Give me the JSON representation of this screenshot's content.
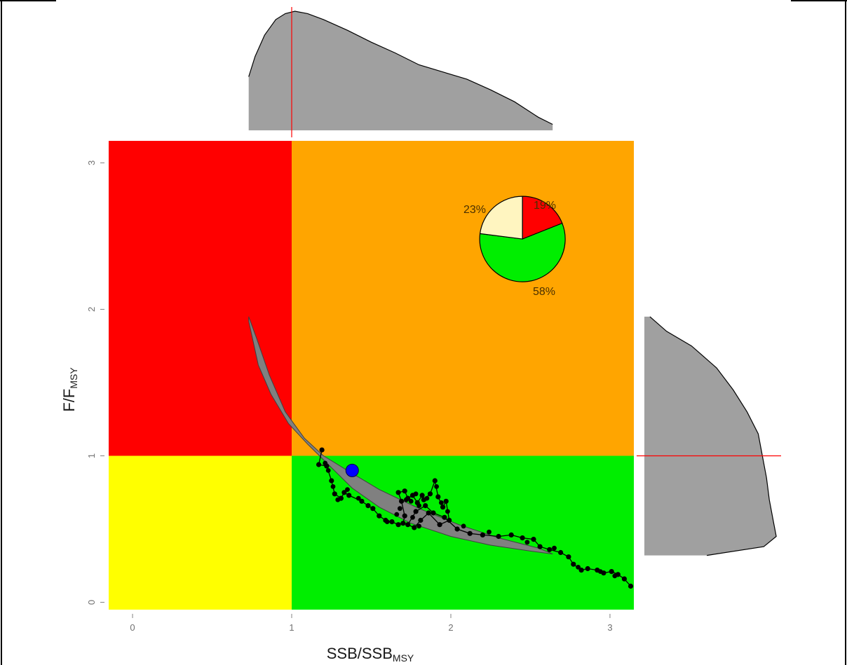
{
  "chart_data": {
    "type": "scatter",
    "title": "",
    "xlabel": {
      "main": "SSB/SSB",
      "sub": "MSY"
    },
    "ylabel": {
      "main": "F/F",
      "sub": "MSY"
    },
    "xlim": [
      -0.15,
      3.15
    ],
    "ylim": [
      -0.05,
      3.15
    ],
    "xticks": [
      0,
      1,
      2,
      3
    ],
    "yticks": [
      0,
      1,
      2,
      3
    ],
    "xtick_labels": [
      "0",
      "1",
      "2",
      "3"
    ],
    "ytick_labels": [
      "0",
      "1",
      "2",
      "3"
    ],
    "reference_lines": {
      "ssb_ratio": 1,
      "f_ratio": 1
    },
    "quadrants": {
      "overfished_overfishing": "#ff0000",
      "healthy_overfishing": "#ffa500",
      "overfished_no_overfishing": "#ffff00",
      "healthy_no_overfishing": "#00ee00"
    },
    "trajectory": {
      "color": "#000000",
      "points": [
        [
          1.19,
          1.04
        ],
        [
          1.17,
          0.94
        ],
        [
          1.22,
          0.93
        ],
        [
          1.25,
          0.83
        ],
        [
          1.27,
          0.74
        ],
        [
          1.31,
          0.71
        ],
        [
          1.33,
          0.75
        ],
        [
          1.36,
          0.73
        ],
        [
          1.44,
          0.69
        ],
        [
          1.48,
          0.66
        ],
        [
          1.51,
          0.64
        ],
        [
          1.55,
          0.59
        ],
        [
          1.59,
          0.56
        ],
        [
          1.63,
          0.55
        ],
        [
          1.67,
          0.53
        ],
        [
          1.7,
          0.54
        ],
        [
          1.71,
          0.59
        ],
        [
          1.69,
          0.69
        ],
        [
          1.67,
          0.75
        ],
        [
          1.71,
          0.76
        ],
        [
          1.73,
          0.71
        ],
        [
          1.76,
          0.73
        ],
        [
          1.79,
          0.68
        ],
        [
          1.82,
          0.73
        ],
        [
          1.83,
          0.7
        ],
        [
          1.87,
          0.74
        ],
        [
          1.9,
          0.83
        ],
        [
          1.92,
          0.72
        ],
        [
          1.95,
          0.65
        ],
        [
          1.97,
          0.69
        ],
        [
          1.99,
          0.56
        ],
        [
          1.93,
          0.53
        ],
        [
          1.86,
          0.61
        ],
        [
          1.81,
          0.56
        ],
        [
          1.77,
          0.51
        ],
        [
          1.73,
          0.53
        ],
        [
          1.78,
          0.62
        ],
        [
          1.84,
          0.66
        ],
        [
          1.89,
          0.61
        ],
        [
          1.96,
          0.58
        ],
        [
          2.04,
          0.5
        ],
        [
          2.12,
          0.47
        ],
        [
          2.2,
          0.46
        ],
        [
          2.3,
          0.45
        ],
        [
          2.38,
          0.46
        ],
        [
          2.45,
          0.44
        ],
        [
          2.52,
          0.43
        ],
        [
          2.56,
          0.38
        ],
        [
          2.62,
          0.36
        ],
        [
          2.69,
          0.34
        ],
        [
          2.74,
          0.31
        ],
        [
          2.77,
          0.26
        ],
        [
          2.82,
          0.22
        ],
        [
          2.86,
          0.23
        ],
        [
          2.92,
          0.22
        ],
        [
          2.96,
          0.2
        ],
        [
          3.01,
          0.21
        ],
        [
          3.05,
          0.19
        ],
        [
          3.09,
          0.16
        ],
        [
          3.13,
          0.11
        ]
      ]
    },
    "trajectory_markers": [
      [
        1.21,
        0.95
      ],
      [
        1.23,
        0.9
      ],
      [
        1.26,
        0.79
      ],
      [
        1.29,
        0.7
      ],
      [
        1.35,
        0.77
      ],
      [
        1.42,
        0.71
      ],
      [
        1.6,
        0.55
      ],
      [
        1.68,
        0.64
      ],
      [
        1.72,
        0.7
      ],
      [
        1.75,
        0.69
      ],
      [
        1.78,
        0.74
      ],
      [
        1.8,
        0.66
      ],
      [
        1.85,
        0.71
      ],
      [
        1.91,
        0.79
      ],
      [
        1.94,
        0.68
      ],
      [
        1.98,
        0.62
      ],
      [
        1.76,
        0.58
      ],
      [
        1.8,
        0.52
      ],
      [
        1.66,
        0.6
      ],
      [
        2.08,
        0.52
      ],
      [
        2.24,
        0.48
      ],
      [
        2.48,
        0.41
      ],
      [
        2.65,
        0.37
      ],
      [
        2.8,
        0.24
      ],
      [
        2.94,
        0.21
      ],
      [
        3.03,
        0.18
      ]
    ],
    "current_point": {
      "x": 1.38,
      "y": 0.9,
      "color": "#0000ff"
    },
    "uncertainty_band": {
      "color": "#808080",
      "upper": [
        [
          0.73,
          1.95
        ],
        [
          0.78,
          1.8
        ],
        [
          0.86,
          1.55
        ],
        [
          0.96,
          1.3
        ],
        [
          1.08,
          1.12
        ],
        [
          1.2,
          1.0
        ],
        [
          1.35,
          0.9
        ],
        [
          1.55,
          0.77
        ],
        [
          1.8,
          0.64
        ],
        [
          2.05,
          0.53
        ],
        [
          2.3,
          0.44
        ],
        [
          2.55,
          0.37
        ],
        [
          2.64,
          0.33
        ]
      ],
      "lower": [
        [
          2.64,
          0.33
        ],
        [
          2.5,
          0.35
        ],
        [
          2.25,
          0.39
        ],
        [
          2.0,
          0.45
        ],
        [
          1.75,
          0.54
        ],
        [
          1.55,
          0.65
        ],
        [
          1.38,
          0.78
        ],
        [
          1.24,
          0.93
        ],
        [
          1.1,
          1.08
        ],
        [
          0.98,
          1.22
        ],
        [
          0.87,
          1.42
        ],
        [
          0.79,
          1.62
        ],
        [
          0.73,
          1.92
        ]
      ]
    },
    "pie": {
      "center": {
        "x": 2.45,
        "y": 2.48
      },
      "slices": [
        {
          "label": "19%",
          "value": 19,
          "color": "#ff0000"
        },
        {
          "label": "58%",
          "value": 58,
          "color": "#00ee00"
        },
        {
          "label": "23%",
          "value": 23,
          "color": "#fff5c0"
        }
      ]
    },
    "marginal_x_density": {
      "color": "#a0a0a0",
      "points": [
        [
          0.73,
          0.45
        ],
        [
          0.77,
          0.62
        ],
        [
          0.83,
          0.8
        ],
        [
          0.9,
          0.93
        ],
        [
          0.96,
          0.98
        ],
        [
          1.02,
          1.0
        ],
        [
          1.1,
          0.98
        ],
        [
          1.2,
          0.93
        ],
        [
          1.35,
          0.84
        ],
        [
          1.5,
          0.74
        ],
        [
          1.65,
          0.65
        ],
        [
          1.8,
          0.55
        ],
        [
          1.95,
          0.49
        ],
        [
          2.1,
          0.43
        ],
        [
          2.25,
          0.34
        ],
        [
          2.4,
          0.24
        ],
        [
          2.55,
          0.11
        ],
        [
          2.64,
          0.05
        ]
      ],
      "reference": 1
    },
    "marginal_y_density": {
      "color": "#a0a0a0",
      "points": [
        [
          0.32,
          0.45
        ],
        [
          0.38,
          0.86
        ],
        [
          0.45,
          0.95
        ],
        [
          0.55,
          0.93
        ],
        [
          0.7,
          0.9
        ],
        [
          0.85,
          0.88
        ],
        [
          1.0,
          0.85
        ],
        [
          1.15,
          0.82
        ],
        [
          1.3,
          0.74
        ],
        [
          1.45,
          0.64
        ],
        [
          1.6,
          0.52
        ],
        [
          1.75,
          0.34
        ],
        [
          1.85,
          0.16
        ],
        [
          1.95,
          0.04
        ]
      ],
      "reference": 1
    }
  }
}
